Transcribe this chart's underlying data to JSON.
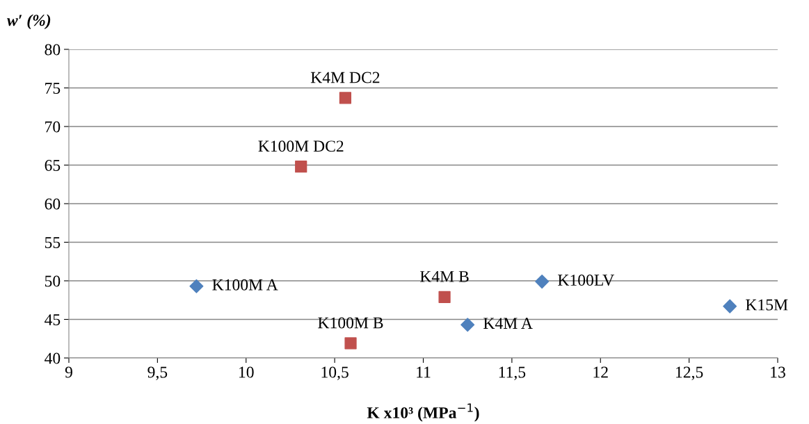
{
  "chart_data": {
    "type": "scatter",
    "xlabel": "K x10³ (MPa$^{−1}$)",
    "ylabel": "w′ (%)",
    "series": [
      {
        "color": "#4f81bd",
        "marker": "diamond",
        "x": [
          9.72,
          11.25,
          11.67,
          12.73
        ],
        "values": [
          49.3,
          44.3,
          49.9,
          46.7
        ]
      },
      {
        "color": "#c0504d",
        "marker": "square",
        "x": [
          10.56,
          10.31,
          11.12,
          10.59
        ],
        "values": [
          73.7,
          64.8,
          47.9,
          41.9
        ]
      }
    ],
    "annotations": [
      {
        "text": "K100M A",
        "x": 9.72,
        "y": 49.3
      },
      {
        "text": "K4M A",
        "x": 11.25,
        "y": 44.3
      },
      {
        "text": "K100LV",
        "x": 11.67,
        "y": 49.9
      },
      {
        "text": "K15M",
        "x": 12.73,
        "y": 46.7
      },
      {
        "text": "K4M DC2",
        "x": 10.56,
        "y": 73.7
      },
      {
        "text": "K100M DC2",
        "x": 10.31,
        "y": 64.8
      },
      {
        "text": "K4M B",
        "x": 11.12,
        "y": 47.9
      },
      {
        "text": "K100M B",
        "x": 10.59,
        "y": 41.9
      }
    ],
    "xlim": [
      9,
      13
    ],
    "xticks": [
      9,
      {
        "value": 9.5,
        "label": "9,5"
      },
      10,
      {
        "value": 10.5,
        "label": "10,5"
      },
      11,
      {
        "value": 11.5,
        "label": "11,5"
      },
      12,
      {
        "value": 12.5,
        "label": "12,5"
      },
      13
    ],
    "ylim": [
      40,
      80
    ],
    "yticks": [
      40,
      45,
      50,
      55,
      60,
      65,
      70,
      75,
      80
    ],
    "grid": "y",
    "legend": false
  }
}
